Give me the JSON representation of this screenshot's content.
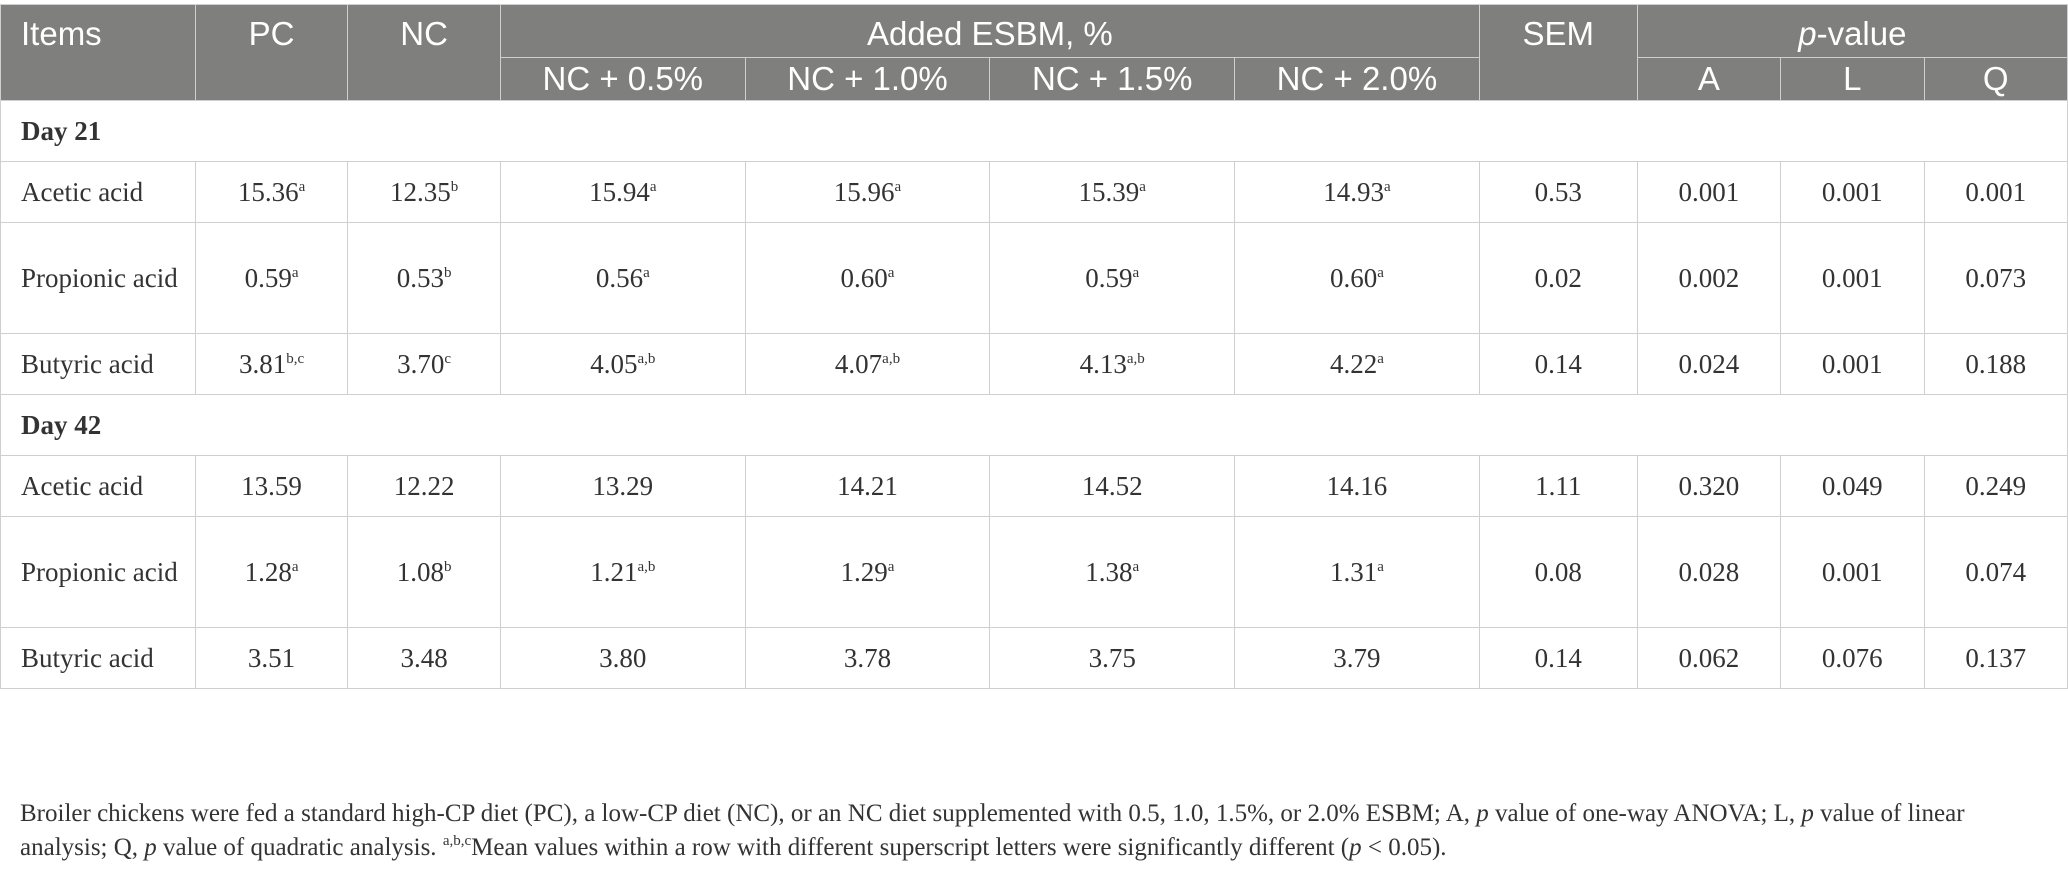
{
  "header": {
    "items": "Items",
    "pc": "PC",
    "nc": "NC",
    "added_group": "Added ESBM, %",
    "sem": "SEM",
    "pvalue_p": "p",
    "pvalue_rest": "-value",
    "sub": [
      "NC + 0.5%",
      "NC + 1.0%",
      "NC + 1.5%",
      "NC + 2.0%"
    ],
    "pcols": [
      "A",
      "L",
      "Q"
    ]
  },
  "sections": [
    {
      "title": "Day 21",
      "rows": [
        {
          "label": "Acetic acid",
          "vals": [
            {
              "v": "15.36",
              "s": "a"
            },
            {
              "v": "12.35",
              "s": "b"
            },
            {
              "v": "15.94",
              "s": "a"
            },
            {
              "v": "15.96",
              "s": "a"
            },
            {
              "v": "15.39",
              "s": "a"
            },
            {
              "v": "14.93",
              "s": "a"
            }
          ],
          "sem": "0.53",
          "p": [
            "0.001",
            "0.001",
            "0.001"
          ]
        },
        {
          "label": "Propionic acid",
          "vals": [
            {
              "v": "0.59",
              "s": "a"
            },
            {
              "v": "0.53",
              "s": "b"
            },
            {
              "v": "0.56",
              "s": "a"
            },
            {
              "v": "0.60",
              "s": "a"
            },
            {
              "v": "0.59",
              "s": "a"
            },
            {
              "v": "0.60",
              "s": "a"
            }
          ],
          "sem": "0.02",
          "p": [
            "0.002",
            "0.001",
            "0.073"
          ]
        },
        {
          "label": "Butyric acid",
          "vals": [
            {
              "v": "3.81",
              "s": "b,c"
            },
            {
              "v": "3.70",
              "s": "c"
            },
            {
              "v": "4.05",
              "s": "a,b"
            },
            {
              "v": "4.07",
              "s": "a,b"
            },
            {
              "v": "4.13",
              "s": "a,b"
            },
            {
              "v": "4.22",
              "s": "a"
            }
          ],
          "sem": "0.14",
          "p": [
            "0.024",
            "0.001",
            "0.188"
          ]
        }
      ]
    },
    {
      "title": "Day 42",
      "rows": [
        {
          "label": "Acetic acid",
          "vals": [
            {
              "v": "13.59",
              "s": ""
            },
            {
              "v": "12.22",
              "s": ""
            },
            {
              "v": "13.29",
              "s": ""
            },
            {
              "v": "14.21",
              "s": ""
            },
            {
              "v": "14.52",
              "s": ""
            },
            {
              "v": "14.16",
              "s": ""
            }
          ],
          "sem": "1.11",
          "p": [
            "0.320",
            "0.049",
            "0.249"
          ]
        },
        {
          "label": "Propionic acid",
          "vals": [
            {
              "v": "1.28",
              "s": "a"
            },
            {
              "v": "1.08",
              "s": "b"
            },
            {
              "v": "1.21",
              "s": "a,b"
            },
            {
              "v": "1.29",
              "s": "a"
            },
            {
              "v": "1.38",
              "s": "a"
            },
            {
              "v": "1.31",
              "s": "a"
            }
          ],
          "sem": "0.08",
          "p": [
            "0.028",
            "0.001",
            "0.074"
          ]
        },
        {
          "label": "Butyric acid",
          "vals": [
            {
              "v": "3.51",
              "s": ""
            },
            {
              "v": "3.48",
              "s": ""
            },
            {
              "v": "3.80",
              "s": ""
            },
            {
              "v": "3.78",
              "s": ""
            },
            {
              "v": "3.75",
              "s": ""
            },
            {
              "v": "3.79",
              "s": ""
            }
          ],
          "sem": "0.14",
          "p": [
            "0.062",
            "0.076",
            "0.137"
          ]
        }
      ]
    }
  ],
  "footnote": {
    "t1": "Broiler chickens were fed a standard high-CP diet (PC), a low-CP diet (NC), or an NC diet supplemented with 0.5, 1.0, 1.5%, or 2.0% ESBM; A, ",
    "p1": "p",
    "t2": " value of one-way ANOVA; L, ",
    "p2": "p",
    "t3": " value of linear analysis; Q, ",
    "p3": "p",
    "t4": " value of quadratic analysis. ",
    "sup": "a,b,c",
    "t5": "Mean values within a row with different superscript letters were significantly different (",
    "p4": "p",
    "t6": " < 0.05)."
  }
}
